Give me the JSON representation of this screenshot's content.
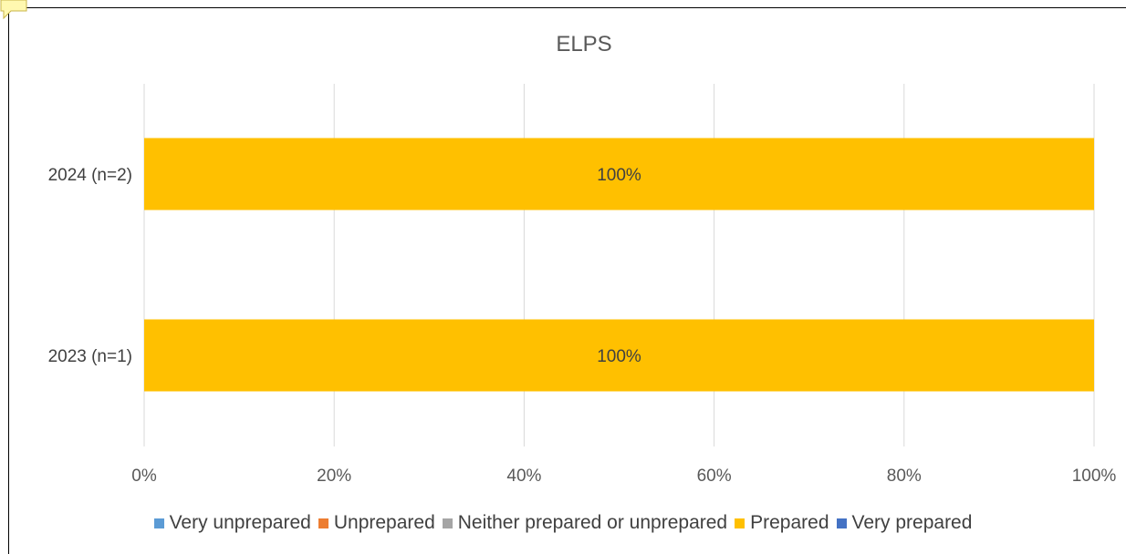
{
  "chart_data": {
    "type": "bar",
    "orientation": "horizontal",
    "stacked": true,
    "title": "ELPS",
    "categories": [
      "2024 (n=2)",
      "2023 (n=1)"
    ],
    "series": [
      {
        "name": "Very unprepared",
        "color": "#5b9bd5",
        "values": [
          0,
          0
        ]
      },
      {
        "name": "Unprepared",
        "color": "#ed7d31",
        "values": [
          0,
          0
        ]
      },
      {
        "name": "Neither prepared or unprepared",
        "color": "#a5a5a5",
        "values": [
          0,
          0
        ]
      },
      {
        "name": "Prepared",
        "color": "#ffc000",
        "values": [
          100,
          100
        ]
      },
      {
        "name": "Very prepared",
        "color": "#4472c4",
        "values": [
          0,
          0
        ]
      }
    ],
    "data_labels": [
      "100%",
      "100%"
    ],
    "xlim": [
      0,
      100
    ],
    "xticks": [
      "0%",
      "20%",
      "40%",
      "60%",
      "80%",
      "100%"
    ],
    "grid": true,
    "legend_position": "bottom"
  }
}
